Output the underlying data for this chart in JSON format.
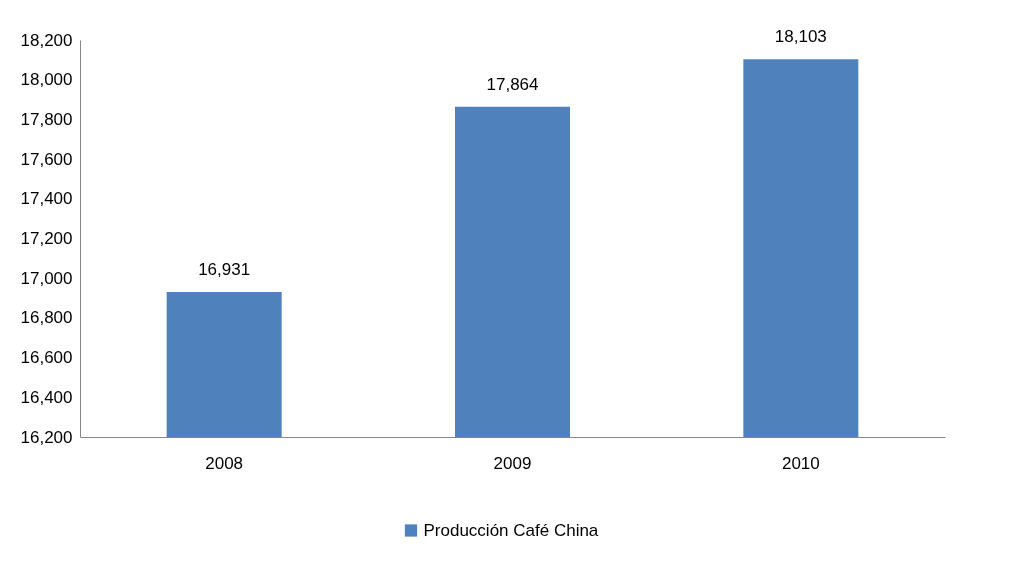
{
  "chart_data": {
    "type": "bar",
    "categories": [
      "2008",
      "2009",
      "2010"
    ],
    "series": [
      {
        "name": "Producción Café China",
        "color": "#4f81bd",
        "values": [
          16931,
          17864,
          18103
        ],
        "value_labels": [
          "16,931",
          "17,864",
          "18,103"
        ]
      }
    ],
    "ylim": [
      16200,
      18200
    ],
    "yticks": [
      {
        "value": 16200,
        "label": "16,200"
      },
      {
        "value": 16400,
        "label": "16,400"
      },
      {
        "value": 16600,
        "label": "16,600"
      },
      {
        "value": 16800,
        "label": "16,800"
      },
      {
        "value": 17000,
        "label": "17,000"
      },
      {
        "value": 17200,
        "label": "17,200"
      },
      {
        "value": 17400,
        "label": "17,400"
      },
      {
        "value": 17600,
        "label": "17,600"
      },
      {
        "value": 17800,
        "label": "17,800"
      },
      {
        "value": 18000,
        "label": "18,000"
      },
      {
        "value": 18200,
        "label": "18,200"
      }
    ],
    "grid": false,
    "legend": "bottom"
  }
}
